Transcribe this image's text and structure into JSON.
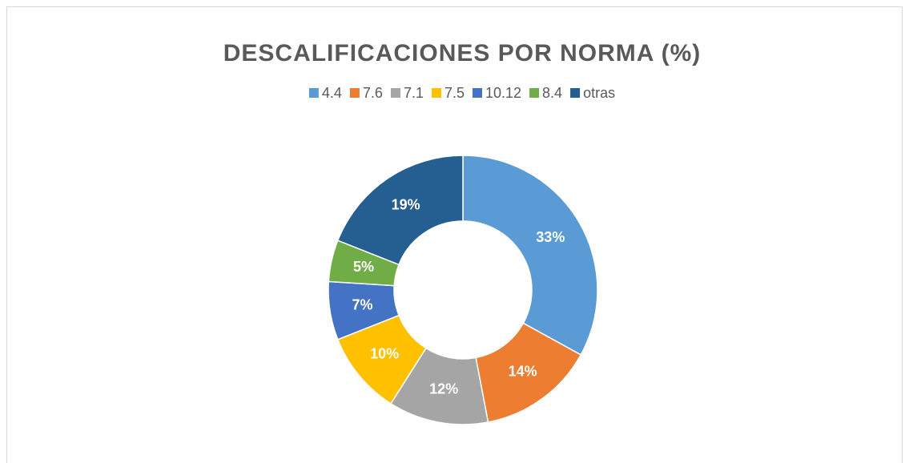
{
  "chart_data": {
    "type": "donut",
    "title": "DESCALIFICACIONES POR NORMA (%)",
    "categories": [
      "4.4",
      "7.6",
      "7.1",
      "7.5",
      "10.12",
      "8.4",
      "otras"
    ],
    "values": [
      33,
      14,
      12,
      10,
      7,
      5,
      19
    ],
    "value_labels": [
      "33%",
      "14%",
      "12%",
      "10%",
      "7%",
      "5%",
      "19%"
    ],
    "colors": [
      "#5b9bd5",
      "#ed7d31",
      "#a5a5a5",
      "#ffc000",
      "#4472c4",
      "#70ad47",
      "#255e91"
    ],
    "legend": "top"
  }
}
